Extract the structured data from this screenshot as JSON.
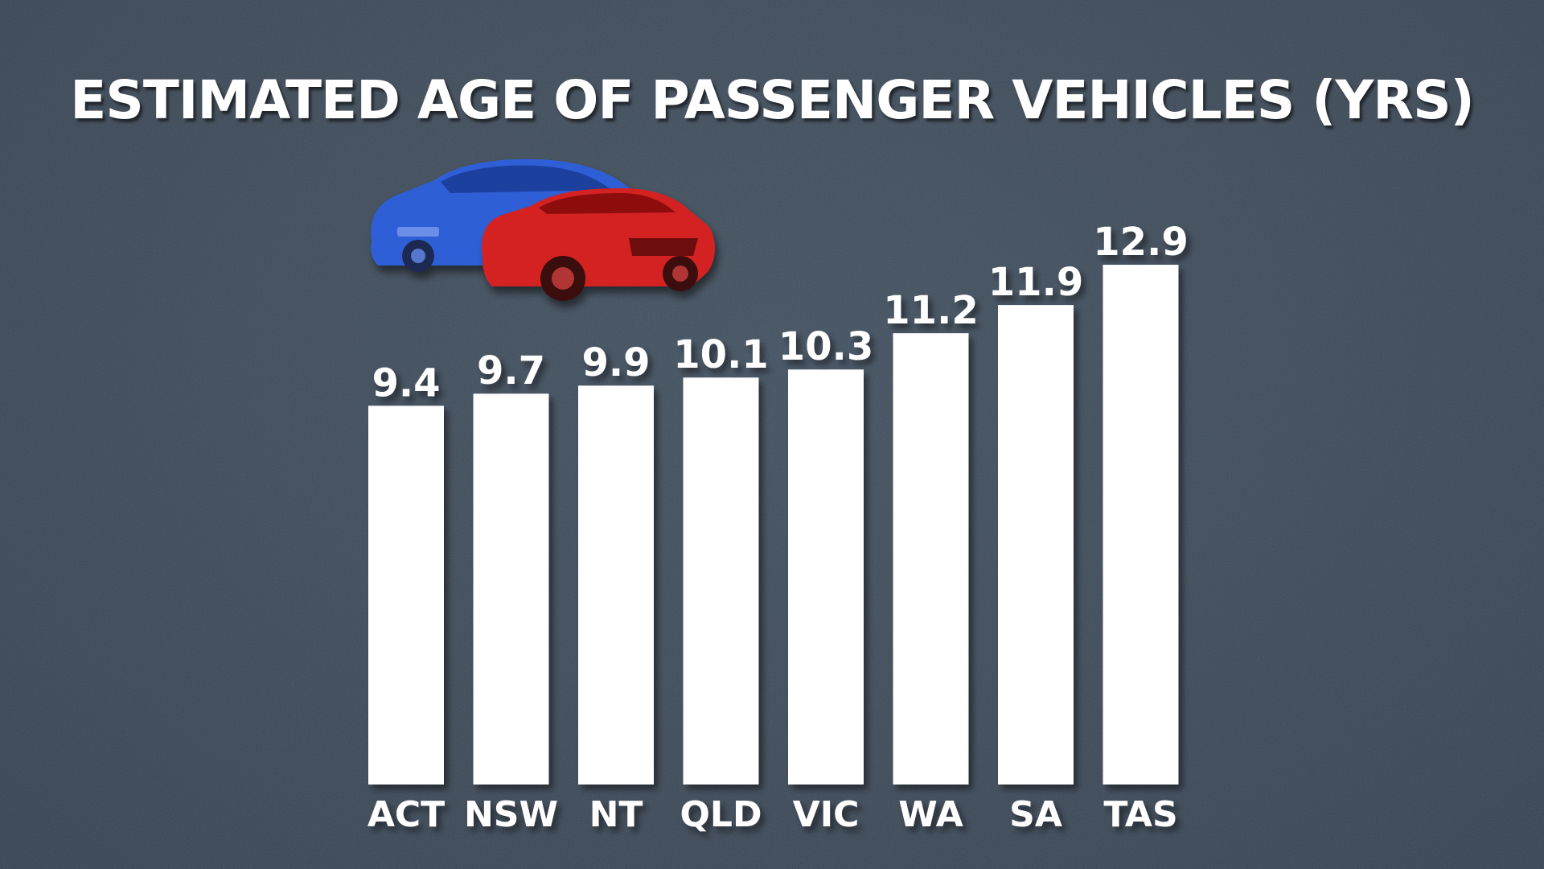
{
  "chart_data": {
    "type": "bar",
    "title": "ESTIMATED AGE OF PASSENGER VEHICLES (YRS)",
    "xlabel": "",
    "ylabel": "",
    "categories": [
      "ACT",
      "NSW",
      "NT",
      "QLD",
      "VIC",
      "WA",
      "SA",
      "TAS"
    ],
    "values": [
      9.4,
      9.7,
      9.9,
      10.1,
      10.3,
      11.2,
      11.9,
      12.9
    ],
    "value_labels": [
      "9.4",
      "9.7",
      "9.9",
      "10.1",
      "10.3",
      "11.2",
      "11.9",
      "12.9"
    ],
    "ylim": [
      0,
      12.9
    ],
    "grid": false,
    "legend": "none",
    "bar_color": "#ffffff",
    "background_color": "#3b4856"
  },
  "decoration": {
    "icons": [
      "blue-car-icon",
      "red-car-icon"
    ],
    "colors": {
      "blue_car": "#2f5fd6",
      "red_car": "#d42121"
    }
  }
}
